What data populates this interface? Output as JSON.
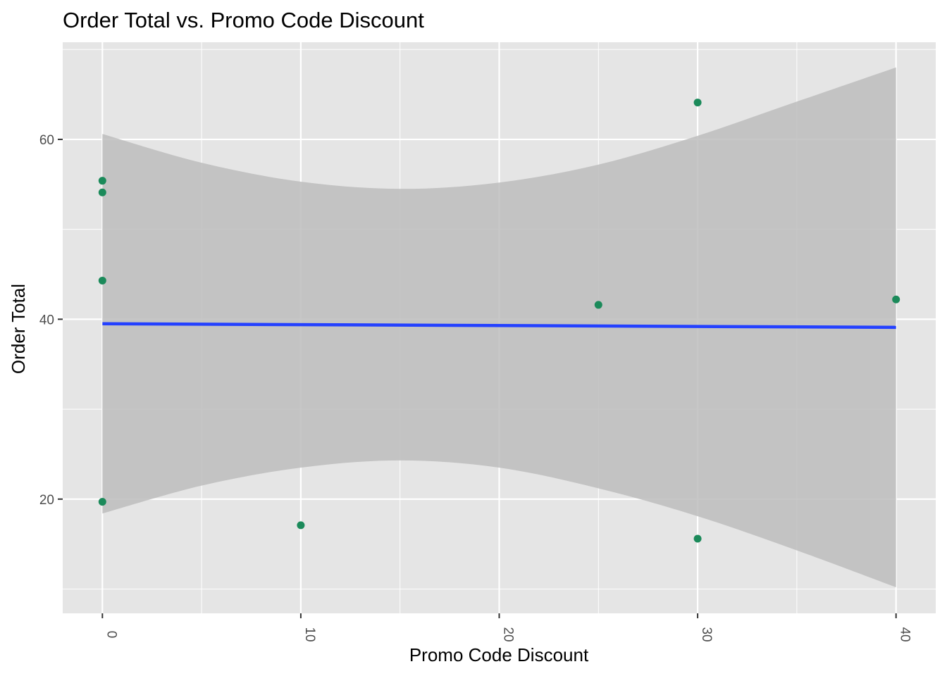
{
  "chart_data": {
    "type": "scatter",
    "title": "Order Total vs. Promo Code Discount",
    "xlabel": "Promo Code Discount",
    "ylabel": "Order Total",
    "xlim": [
      -2,
      42
    ],
    "ylim": [
      7.3,
      70.8
    ],
    "x_ticks": [
      0,
      10,
      20,
      30,
      40
    ],
    "y_ticks": [
      20,
      40,
      60
    ],
    "x_tick_labels": [
      "0",
      "10",
      "20",
      "30",
      "40"
    ],
    "y_tick_labels": [
      "20",
      "40",
      "60"
    ],
    "grid": true,
    "points": [
      {
        "x": 0,
        "y": 55.4
      },
      {
        "x": 0,
        "y": 54.1
      },
      {
        "x": 0,
        "y": 44.3
      },
      {
        "x": 0,
        "y": 19.7
      },
      {
        "x": 10,
        "y": 17.1
      },
      {
        "x": 25,
        "y": 41.6
      },
      {
        "x": 30,
        "y": 64.1
      },
      {
        "x": 30,
        "y": 15.6
      },
      {
        "x": 40,
        "y": 42.2
      }
    ],
    "trend_line": {
      "method": "lm",
      "x": [
        0,
        40
      ],
      "y": [
        39.5,
        39.1
      ]
    },
    "confidence_band": {
      "x": [
        0,
        5,
        10,
        15,
        20,
        25,
        30,
        35,
        40
      ],
      "upper": [
        60.6,
        57.4,
        55.3,
        54.5,
        55.2,
        57.2,
        60.4,
        64.2,
        68.0
      ],
      "lower": [
        18.4,
        21.5,
        23.5,
        24.3,
        23.5,
        21.2,
        18.1,
        14.3,
        10.2
      ]
    },
    "colors": {
      "point": "#1b8a5a",
      "line": "#2340ff",
      "band": "#bdbdbd",
      "panel": "#e5e5e5",
      "grid": "#ffffff"
    }
  }
}
